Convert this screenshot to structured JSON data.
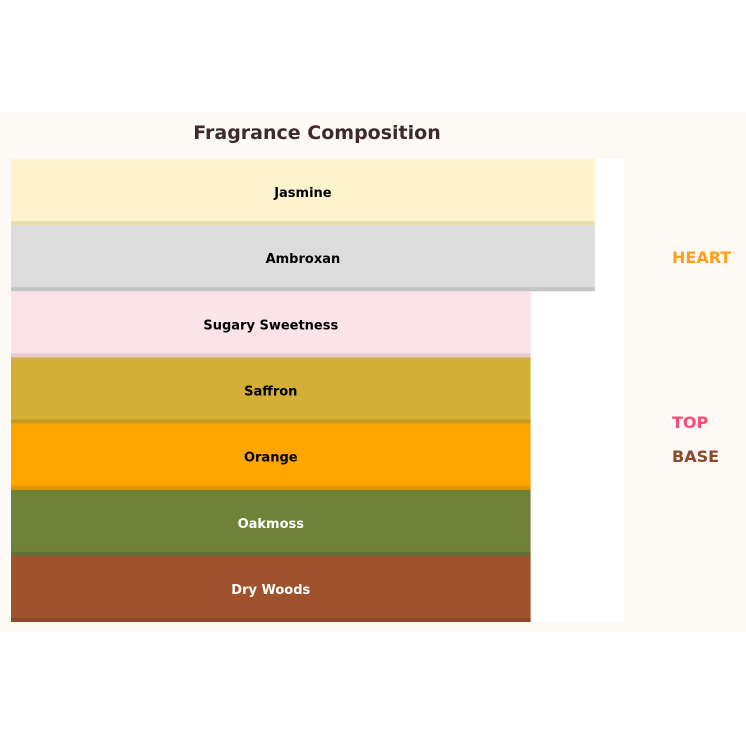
{
  "chart_data": {
    "type": "bar",
    "orientation": "horizontal-stacked-layers",
    "title": "Fragrance Composition",
    "xlim": [
      0,
      1.05
    ],
    "grid": false,
    "axes_visible": false,
    "categories": [
      "Jasmine",
      "Ambroxan",
      "Sugary Sweetness",
      "Saffron",
      "Orange",
      "Oakmoss",
      "Dry Woods"
    ],
    "values": [
      1.0,
      1.0,
      0.89,
      0.89,
      0.89,
      0.89,
      0.89
    ],
    "colors": [
      "#fef4cd",
      "#dcdcdc",
      "#fbe3ea",
      "#d4af37",
      "#ffa500",
      "#6f8238",
      "#a0522d"
    ],
    "edge_colors": [
      "#e8dcb0",
      "#c4c4c4",
      "#e4c9d0",
      "#c49a25",
      "#e69500",
      "#5f7030",
      "#8e4826"
    ],
    "label_colors": [
      "#000000",
      "#000000",
      "#000000",
      "#000000",
      "#000000",
      "#ffffff",
      "#ffffff"
    ],
    "legend": {
      "placement": "right",
      "entries": [
        {
          "label": "HEART",
          "color": "#ff9f1c"
        },
        {
          "label": "TOP",
          "color": "#ff4a7a"
        },
        {
          "label": "BASE",
          "color": "#8b4a2b"
        }
      ]
    },
    "background": "#fdf9f4",
    "title_color": "#3d2b2b"
  }
}
